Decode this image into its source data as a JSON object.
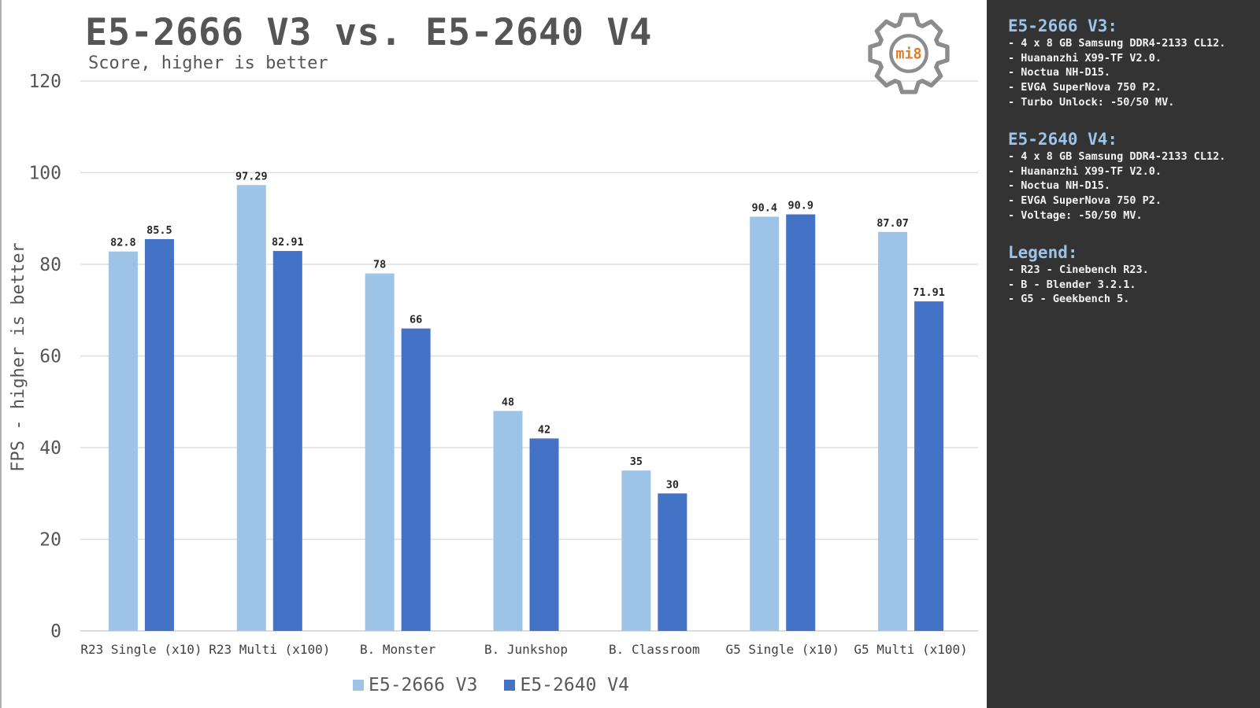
{
  "header": {
    "title": "E5-2666 V3 vs. E5-2640 V4",
    "subtitle": "Score, higher is better",
    "logo_text": "mi8",
    "logo_icon": "gear-icon"
  },
  "colors": {
    "series_v3": "#9dc3e6",
    "series_v4": "#4472c4",
    "title_text": "#555555",
    "panel_bg": "#333333",
    "panel_heading": "#9dc3e6",
    "logo_gear": "#8c8c8c",
    "logo_text": "#e07b2a"
  },
  "chart_data": {
    "type": "bar",
    "title": "E5-2666 V3 vs. E5-2640 V4",
    "subtitle": "Score, higher is better",
    "xlabel": "",
    "ylabel": "FPS - higher is better",
    "ylim": [
      0,
      120
    ],
    "yticks": [
      0,
      20,
      40,
      60,
      80,
      100,
      120
    ],
    "grid": true,
    "legend_position": "bottom-center",
    "categories": [
      "R23 Single (x10)",
      "R23 Multi (x100)",
      "B. Monster",
      "B. Junkshop",
      "B. Classroom",
      "G5 Single (x10)",
      "G5 Multi (x100)"
    ],
    "series": [
      {
        "name": "E5-2666 V3",
        "color": "#9dc3e6",
        "values": [
          82.8,
          97.29,
          78,
          48,
          35,
          90.4,
          87.07
        ],
        "labels": [
          "82.8",
          "97.29",
          "78",
          "48",
          "35",
          "90.4",
          "87.07"
        ]
      },
      {
        "name": "E5-2640 V4",
        "color": "#4472c4",
        "values": [
          85.5,
          82.91,
          66,
          42,
          30,
          90.9,
          71.91
        ],
        "labels": [
          "85.5",
          "82.91",
          "66",
          "42",
          "30",
          "90.9",
          "71.91"
        ]
      }
    ]
  },
  "side_panel": {
    "sections": [
      {
        "heading": "E5-2666 V3:",
        "items": [
          "- 4 x 8 GB Samsung DDR4-2133 CL12.",
          "- Huananzhi X99-TF V2.0.",
          "- Noctua NH-D15.",
          "- EVGA SuperNova 750 P2.",
          "- Turbo Unlock: -50/50 MV."
        ]
      },
      {
        "heading": "E5-2640 V4:",
        "items": [
          "- 4 x 8 GB Samsung DDR4-2133 CL12.",
          "- Huananzhi X99-TF V2.0.",
          "- Noctua NH-D15.",
          "- EVGA SuperNova 750 P2.",
          "- Voltage: -50/50 MV."
        ]
      },
      {
        "heading": "Legend:",
        "items": [
          "- R23 - Cinebench R23.",
          "- B - Blender 3.2.1.",
          "- G5 - Geekbench 5."
        ]
      }
    ]
  }
}
